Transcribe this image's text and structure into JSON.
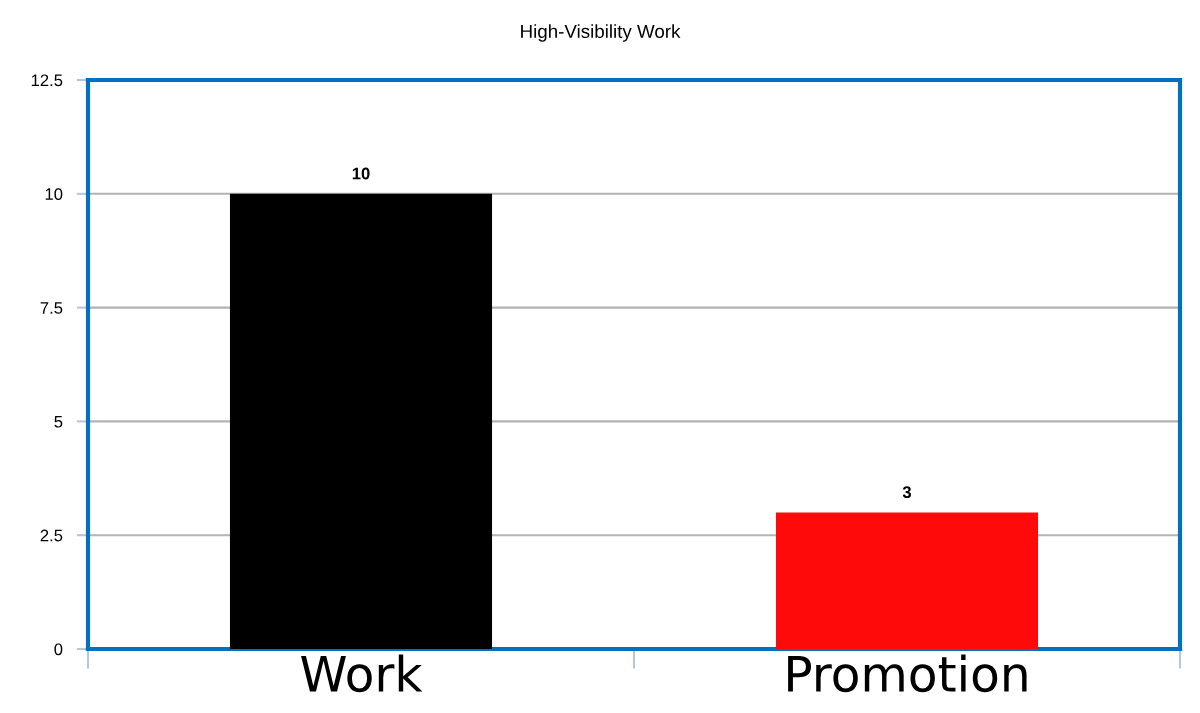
{
  "chart_data": {
    "type": "bar",
    "title": "High-Visibility Work",
    "categories": [
      "Work",
      "Promotion"
    ],
    "values": [
      10,
      3
    ],
    "colors": [
      "#000000",
      "#ff0a0a"
    ],
    "ylim": [
      0,
      12.5
    ],
    "yticks": [
      0,
      2.5,
      5,
      7.5,
      10,
      12.5
    ],
    "grid": "y",
    "data_labels": true
  }
}
